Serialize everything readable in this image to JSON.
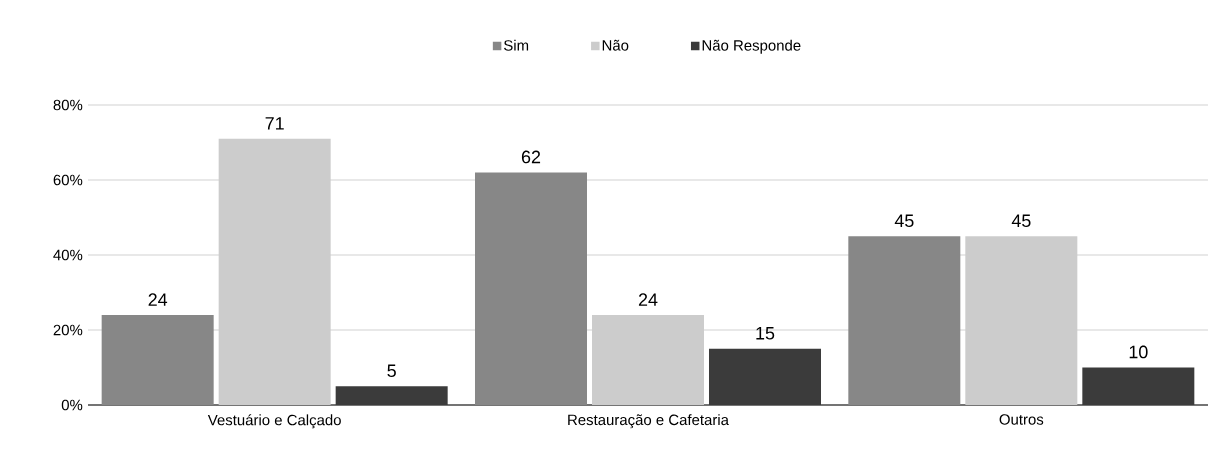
{
  "chart_data": {
    "type": "bar",
    "categories": [
      "Vestuário e Calçado",
      "Restauração e Cafetaria",
      "Outros"
    ],
    "series": [
      {
        "name": "Sim",
        "color": "#878787",
        "values": [
          24,
          62,
          45
        ]
      },
      {
        "name": "Não",
        "color": "#cccccc",
        "values": [
          71,
          24,
          45
        ]
      },
      {
        "name": "Não Responde",
        "color": "#3b3b3b",
        "values": [
          5,
          15,
          10
        ]
      }
    ],
    "ylim": [
      0,
      80
    ],
    "yticks": [
      {
        "value": 0,
        "label": "0%"
      },
      {
        "value": 20,
        "label": "20%"
      },
      {
        "value": 40,
        "label": "40%"
      },
      {
        "value": 60,
        "label": "60%"
      },
      {
        "value": 80,
        "label": "80%"
      }
    ],
    "grid": "y",
    "legend": "top",
    "data_labels": true
  }
}
